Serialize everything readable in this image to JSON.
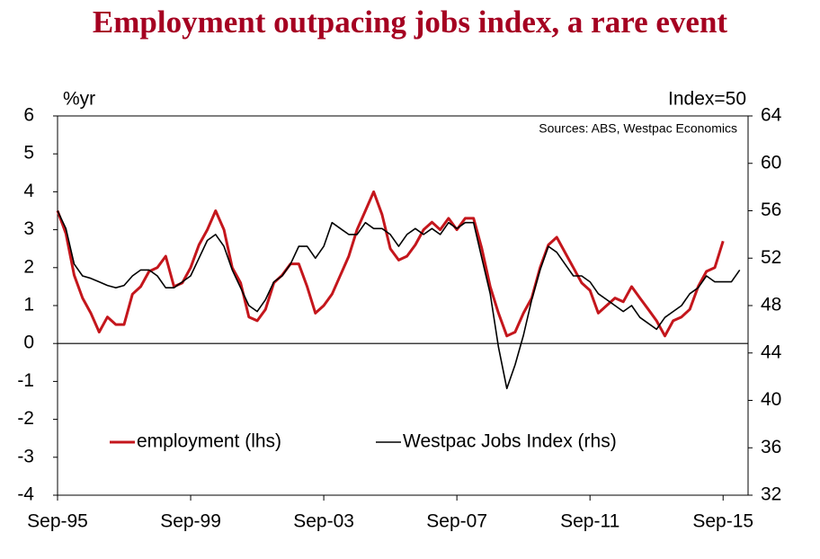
{
  "chart_data": {
    "type": "line",
    "title": "Employment outpacing jobs index, a rare event",
    "y_label": "%yr",
    "y2_label": "Index=50",
    "source": "Sources: ABS, Westpac Economics",
    "x": [
      1995.75,
      1996,
      1996.25,
      1996.5,
      1996.75,
      1997,
      1997.25,
      1997.5,
      1997.75,
      1998,
      1998.25,
      1998.5,
      1998.75,
      1999,
      1999.25,
      1999.5,
      1999.75,
      2000,
      2000.25,
      2000.5,
      2000.75,
      2001,
      2001.25,
      2001.5,
      2001.75,
      2002,
      2002.25,
      2002.5,
      2002.75,
      2003,
      2003.25,
      2003.5,
      2003.75,
      2004,
      2004.25,
      2004.5,
      2004.75,
      2005,
      2005.25,
      2005.5,
      2005.75,
      2006,
      2006.25,
      2006.5,
      2006.75,
      2007,
      2007.25,
      2007.5,
      2007.75,
      2008,
      2008.25,
      2008.5,
      2008.75,
      2009,
      2009.25,
      2009.5,
      2009.75,
      2010,
      2010.25,
      2010.5,
      2010.75,
      2011,
      2011.25,
      2011.5,
      2011.75,
      2012,
      2012.25,
      2012.5,
      2012.75,
      2013,
      2013.25,
      2013.5,
      2013.75,
      2014,
      2014.25,
      2014.5,
      2014.75,
      2015,
      2015.25,
      2015.5,
      2015.75,
      2016,
      2016.25
    ],
    "series": [
      {
        "name": "employment (lhs)",
        "color": "#c4161c",
        "values": [
          3.5,
          2.9,
          1.8,
          1.2,
          0.8,
          0.3,
          0.7,
          0.5,
          0.5,
          1.3,
          1.5,
          1.9,
          2.0,
          2.3,
          1.5,
          1.6,
          2.0,
          2.6,
          3.0,
          3.5,
          3.0,
          2.0,
          1.6,
          0.7,
          0.6,
          0.9,
          1.6,
          1.8,
          2.1,
          2.1,
          1.5,
          0.8,
          1.0,
          1.3,
          1.8,
          2.3,
          3.0,
          3.5,
          4.0,
          3.4,
          2.5,
          2.2,
          2.3,
          2.6,
          3.0,
          3.2,
          3.0,
          3.3,
          3.0,
          3.3,
          3.3,
          2.5,
          1.5,
          0.8,
          0.2,
          0.3,
          0.8,
          1.2,
          2.0,
          2.6,
          2.8,
          2.4,
          2.0,
          1.6,
          1.4,
          0.8,
          1.0,
          1.2,
          1.1,
          1.5,
          1.2,
          0.9,
          0.6,
          0.2,
          0.6,
          0.7,
          0.9,
          1.5,
          1.9,
          2.0,
          2.7,
          null,
          null
        ]
      },
      {
        "name": "Westpac Jobs Index  (rhs)",
        "color": "#000000",
        "axis": "y2",
        "values": [
          56,
          54.5,
          51.5,
          50.5,
          50.3,
          50,
          49.7,
          49.5,
          49.7,
          50.5,
          51,
          51,
          50.5,
          49.5,
          49.5,
          50,
          50.5,
          52,
          53.5,
          54,
          53,
          51,
          49.5,
          48,
          47.5,
          48.5,
          50,
          50.5,
          51.5,
          53,
          53,
          52,
          53,
          55,
          54.5,
          54,
          54,
          55,
          54.5,
          54.5,
          54,
          53,
          54,
          54.5,
          54,
          54.5,
          54,
          55,
          54.5,
          55,
          55,
          52,
          49,
          44.5,
          41,
          43,
          45.5,
          48.5,
          51,
          53,
          52.5,
          51.5,
          50.5,
          50.5,
          50,
          49,
          48.5,
          48,
          47.5,
          48,
          47,
          46.5,
          46,
          47,
          47.5,
          48,
          49,
          49.5,
          50.5,
          50,
          50,
          50,
          51
        ]
      }
    ],
    "xlim": [
      1995.75,
      2016.5
    ],
    "xticks": [
      {
        "value": 1995.75,
        "label": "Sep-95"
      },
      {
        "value": 1999.75,
        "label": "Sep-99"
      },
      {
        "value": 2003.75,
        "label": "Sep-03"
      },
      {
        "value": 2007.75,
        "label": "Sep-07"
      },
      {
        "value": 2011.75,
        "label": "Sep-11"
      },
      {
        "value": 2015.75,
        "label": "Sep-15"
      }
    ],
    "ylim": [
      -4,
      6
    ],
    "yticks": [
      -4,
      -3,
      -2,
      -1,
      0,
      1,
      2,
      3,
      4,
      5,
      6
    ],
    "y2lim": [
      32,
      64
    ],
    "y2ticks": [
      32,
      36,
      40,
      44,
      48,
      52,
      56,
      60,
      64
    ]
  }
}
